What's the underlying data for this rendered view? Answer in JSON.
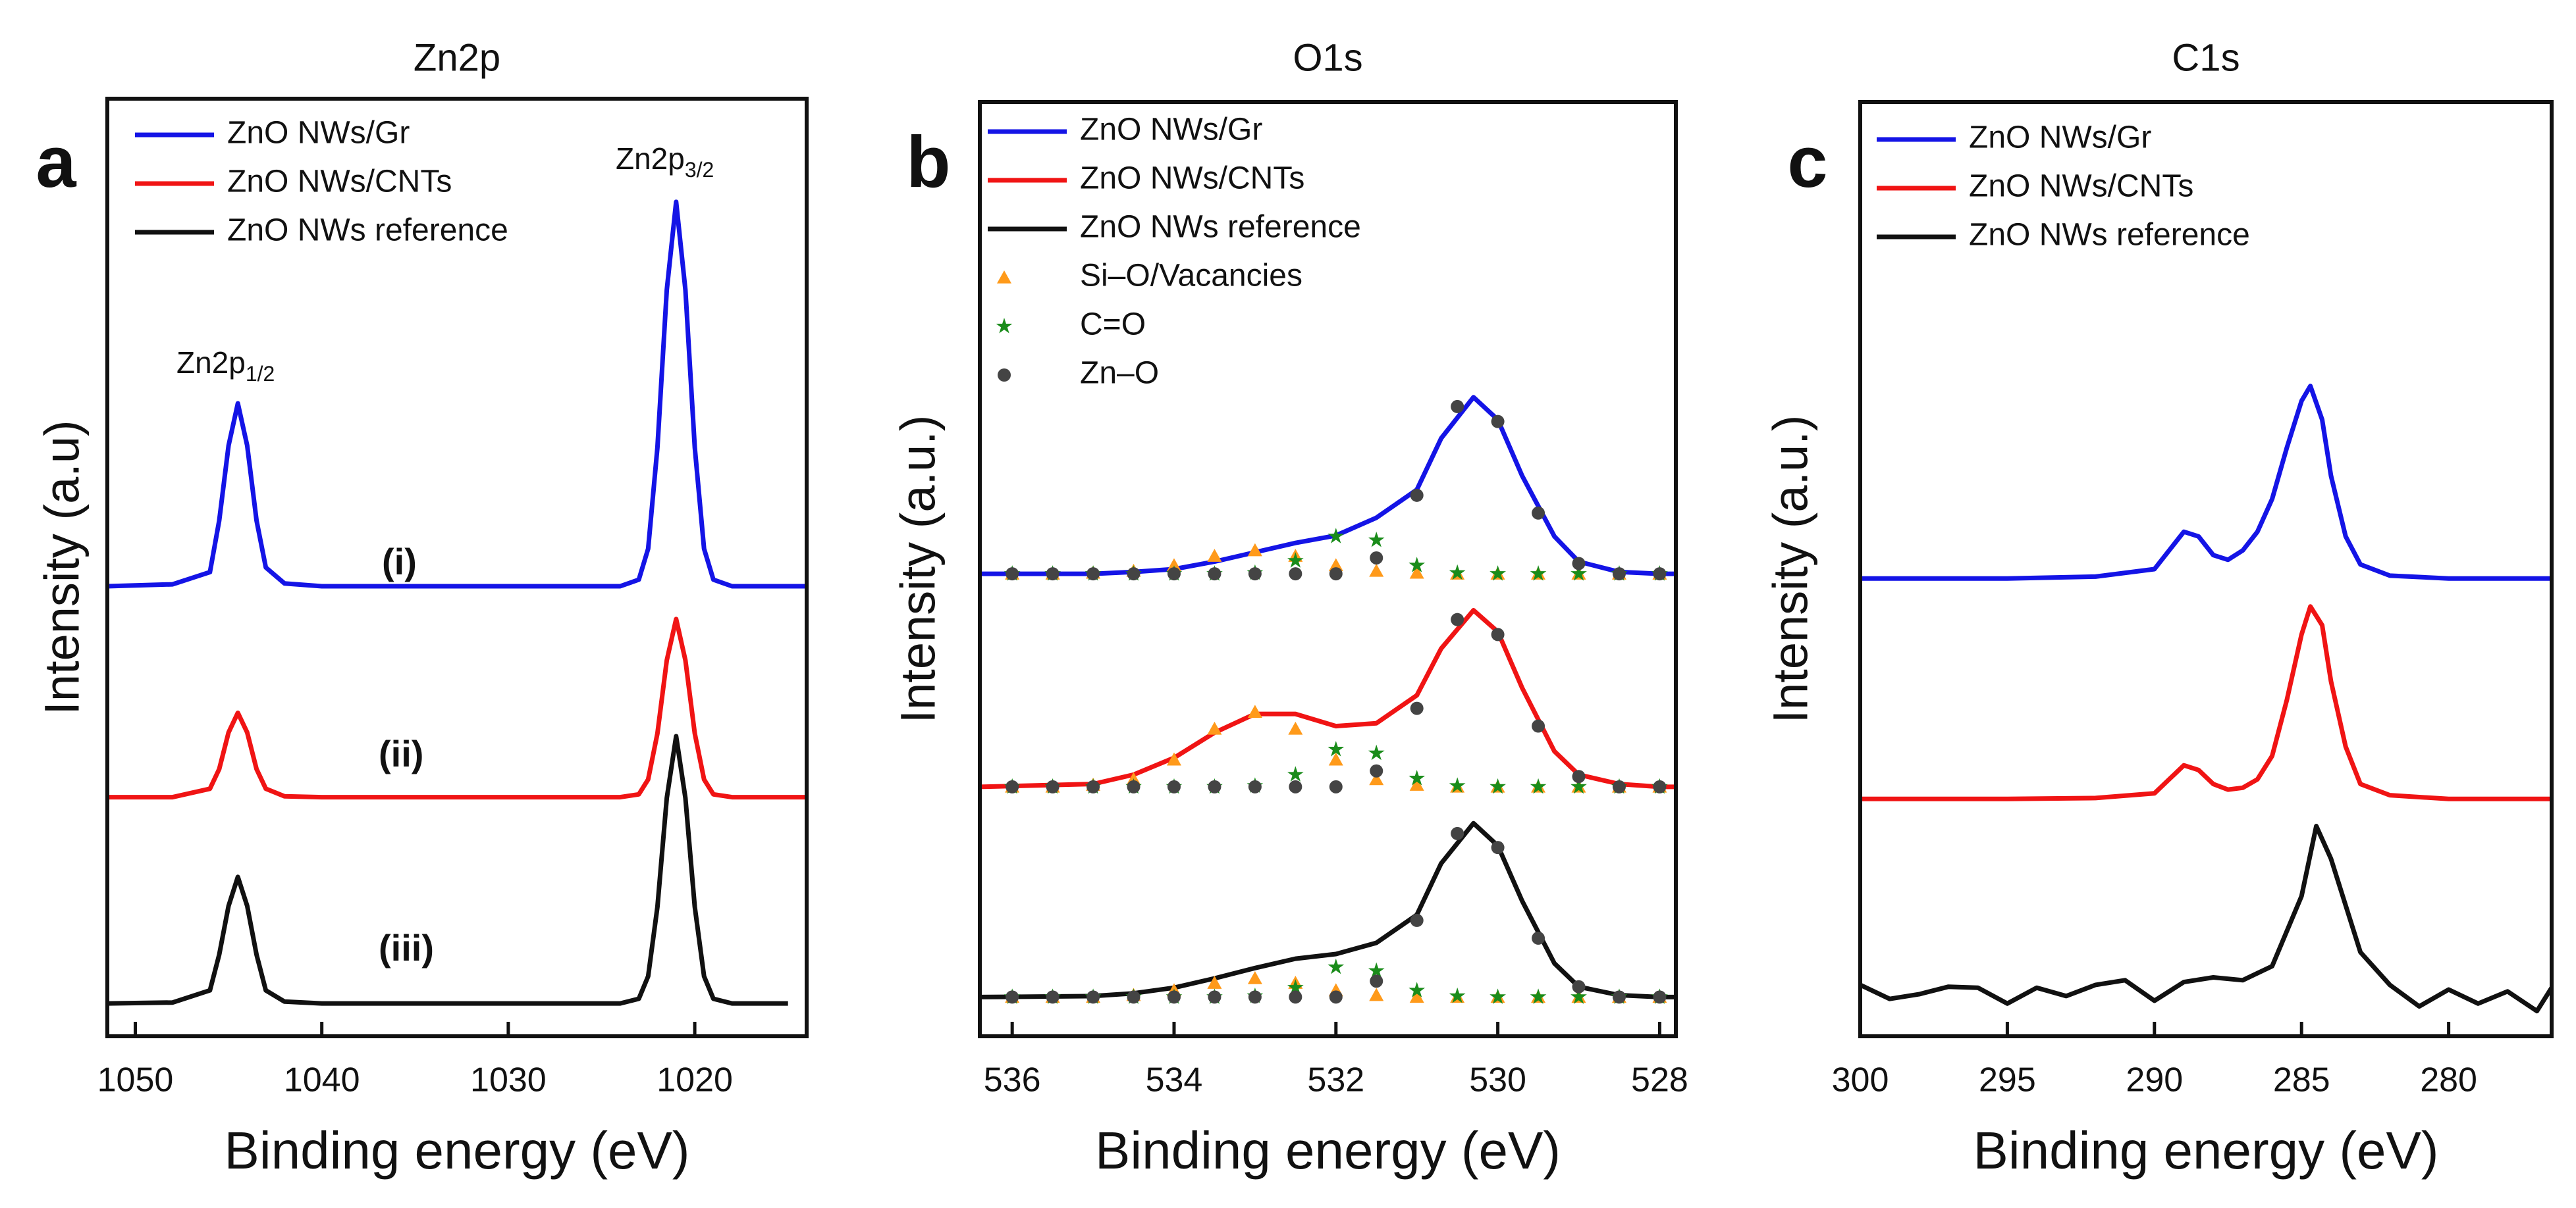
{
  "chart_data": [
    {
      "type": "line",
      "panel_label": "a",
      "title": "Zn2p",
      "xlabel": "Binding energy (eV)",
      "ylabel": "Intensity (a.u)",
      "xlim": [
        1051.5,
        1014
      ],
      "ylim": [
        0,
        100
      ],
      "xticks": [
        1050,
        1040,
        1030,
        1020
      ],
      "legend": "upper left",
      "annotations": [
        {
          "text": "Zn2p",
          "sub": "1/2"
        },
        {
          "text": "Zn2p",
          "sub": "3/2"
        },
        {
          "text": "(i)"
        },
        {
          "text": "(ii)"
        },
        {
          "text": "(iii)"
        }
      ],
      "series": [
        {
          "name": "ZnO NWs/Gr",
          "color": "#1414e6",
          "x": [
            1051.5,
            1048,
            1046,
            1045.5,
            1045,
            1044.5,
            1044,
            1043.5,
            1043,
            1042,
            1040,
            1035,
            1030,
            1026,
            1024,
            1023,
            1022.5,
            1022,
            1021.5,
            1021,
            1020.5,
            1020,
            1019.5,
            1019,
            1018,
            1016,
            1014
          ],
          "values": [
            48,
            48.2,
            49.5,
            55,
            63,
            67.5,
            63,
            55,
            50,
            48.3,
            48,
            48,
            48,
            48,
            48,
            48.7,
            52,
            62.8,
            79.6,
            89,
            79.6,
            62.8,
            52,
            48.7,
            48,
            48,
            48
          ]
        },
        {
          "name": "ZnO NWs/CNTs",
          "color": "#f01414",
          "x": [
            1051.5,
            1048,
            1046,
            1045.5,
            1045,
            1044.5,
            1044,
            1043.5,
            1043,
            1042,
            1040,
            1035,
            1030,
            1026,
            1024,
            1023,
            1022.5,
            1022,
            1021.5,
            1021,
            1020.5,
            1020,
            1019.5,
            1019,
            1018,
            1016,
            1014
          ],
          "values": [
            25.5,
            25.5,
            26.4,
            28.5,
            32.4,
            34.5,
            32.4,
            28.5,
            26.4,
            25.6,
            25.5,
            25.5,
            25.5,
            25.5,
            25.5,
            25.8,
            27.4,
            32.3,
            40.1,
            44.5,
            40.1,
            32.3,
            27.4,
            25.8,
            25.5,
            25.5,
            25.5
          ]
        },
        {
          "name": "ZnO NWs reference",
          "color": "#111111",
          "x": [
            1051.5,
            1048,
            1046,
            1045.5,
            1045,
            1044.5,
            1044,
            1043.5,
            1043,
            1042,
            1040,
            1035,
            1030,
            1026,
            1024,
            1023,
            1022.5,
            1022,
            1021.5,
            1021,
            1020.5,
            1020,
            1019.5,
            1019,
            1018,
            1016,
            1015
          ],
          "values": [
            3.5,
            3.6,
            4.9,
            8.7,
            13.9,
            17,
            13.9,
            8.7,
            4.9,
            3.7,
            3.5,
            3.5,
            3.5,
            3.5,
            3.5,
            4,
            6.4,
            13.8,
            25.4,
            32,
            25.4,
            13.8,
            6.4,
            4,
            3.5,
            3.5,
            3.5
          ]
        }
      ]
    },
    {
      "type": "line",
      "panel_label": "b",
      "title": "O1s",
      "xlabel": "Binding energy (eV)",
      "ylabel": "Intensity (a.u.)",
      "xlim": [
        536.4,
        527.8
      ],
      "ylim": [
        0,
        100
      ],
      "xticks": [
        536,
        534,
        532,
        530,
        528
      ],
      "legend": "upper left",
      "series": [
        {
          "name": "ZnO NWs/Gr",
          "color": "#1414e6",
          "x": [
            536.4,
            535,
            534.5,
            534,
            533.5,
            533,
            532.5,
            532,
            531.5,
            531,
            530.7,
            530.3,
            530,
            529.7,
            529.3,
            529,
            528.5,
            528,
            527.8
          ],
          "values": [
            49.5,
            49.5,
            49.7,
            50,
            50.8,
            51.8,
            52.8,
            53.6,
            55.5,
            58.5,
            64,
            68.4,
            66,
            60,
            53.5,
            50.8,
            49.7,
            49.5,
            49.5
          ]
        },
        {
          "name": "ZnO NWs/CNTs",
          "color": "#f01414",
          "x": [
            536.4,
            535,
            534.5,
            534,
            533.5,
            533,
            532.5,
            532,
            531.5,
            531,
            530.7,
            530.3,
            530,
            529.7,
            529.3,
            529,
            528.5,
            528,
            527.8
          ],
          "values": [
            26.7,
            27,
            28,
            29.8,
            32.5,
            34.5,
            34.5,
            33.2,
            33.5,
            36.5,
            41.5,
            45.6,
            43.3,
            37.3,
            30.5,
            28,
            27,
            26.7,
            26.7
          ]
        },
        {
          "name": "ZnO NWs reference",
          "color": "#111111",
          "x": [
            536.4,
            535,
            534.5,
            534,
            533.5,
            533,
            532.5,
            532,
            531.5,
            531,
            530.7,
            530.3,
            530,
            529.7,
            529.3,
            529,
            528.5,
            528,
            527.8
          ],
          "values": [
            4.2,
            4.3,
            4.6,
            5.2,
            6.2,
            7.3,
            8.3,
            8.8,
            10,
            13,
            18.5,
            22.8,
            20.4,
            14.5,
            7.8,
            5.3,
            4.4,
            4.2,
            4.2
          ]
        },
        {
          "name": "Si–O/Vacancies",
          "type": "scatter",
          "marker": "triangle",
          "color": "#ff9a1a",
          "x": [
            536,
            535.5,
            535,
            534.5,
            534,
            533.5,
            533,
            532.5,
            532,
            531.5,
            531,
            530.5,
            530,
            529.5,
            529,
            528.5,
            528,
            536,
            535.5,
            535,
            534.5,
            534,
            533.5,
            533,
            532.5,
            532,
            531.5,
            531,
            530.5,
            530,
            529.5,
            529,
            528.5,
            528,
            536,
            535.5,
            535,
            534.5,
            534,
            533.5,
            533,
            532.5,
            532,
            531.5,
            531,
            530.5,
            530,
            529.5,
            529,
            528.5,
            528
          ],
          "values": [
            49.5,
            49.5,
            49.6,
            49.8,
            50.4,
            51.4,
            52,
            51.4,
            50.4,
            49.8,
            49.6,
            49.5,
            49.5,
            49.5,
            49.5,
            49.5,
            49.5,
            26.7,
            26.7,
            26.9,
            27.5,
            29.6,
            32.9,
            34.7,
            32.9,
            29.6,
            27.5,
            26.9,
            26.7,
            26.7,
            26.7,
            26.7,
            26.7,
            26.7,
            4.2,
            4.2,
            4.2,
            4.4,
            4.9,
            5.7,
            6.2,
            5.7,
            4.9,
            4.4,
            4.2,
            4.2,
            4.2,
            4.2,
            4.2,
            4.2,
            4.2
          ]
        },
        {
          "name": "C=O",
          "type": "scatter",
          "marker": "star",
          "color": "#1a8c1a",
          "x": [
            536,
            535.5,
            535,
            534.5,
            534,
            533.5,
            533,
            532.5,
            532,
            531.5,
            531,
            530.5,
            530,
            529.5,
            529,
            528.5,
            528,
            536,
            535.5,
            535,
            534.5,
            534,
            533.5,
            533,
            532.5,
            532,
            531.5,
            531,
            530.5,
            530,
            529.5,
            529,
            528.5,
            528,
            536,
            535.5,
            535,
            534.5,
            534,
            533.5,
            533,
            532.5,
            532,
            531.5,
            531,
            530.5,
            530,
            529.5,
            529,
            528.5,
            528
          ],
          "values": [
            49.5,
            49.5,
            49.5,
            49.5,
            49.5,
            49.5,
            49.6,
            50.9,
            53.5,
            53.1,
            50.4,
            49.6,
            49.5,
            49.5,
            49.5,
            49.5,
            49.5,
            26.7,
            26.7,
            26.7,
            26.7,
            26.7,
            26.7,
            26.8,
            28,
            30.7,
            30.3,
            27.6,
            26.8,
            26.7,
            26.7,
            26.7,
            26.7,
            26.7,
            4.2,
            4.2,
            4.2,
            4.2,
            4.2,
            4.2,
            4.3,
            5.2,
            7.4,
            7,
            4.9,
            4.3,
            4.2,
            4.2,
            4.2,
            4.2,
            4.2
          ]
        },
        {
          "name": "Zn–O",
          "type": "scatter",
          "marker": "circle",
          "color": "#444444",
          "x": [
            536,
            535.5,
            535,
            534.5,
            534,
            533.5,
            533,
            532.5,
            532,
            531.5,
            531,
            530.5,
            530,
            529.5,
            529,
            528.5,
            528,
            536,
            535.5,
            535,
            534.5,
            534,
            533.5,
            533,
            532.5,
            532,
            531.5,
            531,
            530.5,
            530,
            529.5,
            529,
            528.5,
            528,
            536,
            535.5,
            535,
            534.5,
            534,
            533.5,
            533,
            532.5,
            532,
            531.5,
            531,
            530.5,
            530,
            529.5,
            529,
            528.5,
            528
          ],
          "values": [
            49.5,
            49.5,
            49.5,
            49.5,
            49.5,
            49.5,
            49.5,
            49.5,
            49.5,
            51.2,
            57.9,
            67.4,
            65.8,
            56,
            50.6,
            49.5,
            49.5,
            26.7,
            26.7,
            26.7,
            26.7,
            26.7,
            26.7,
            26.7,
            26.7,
            26.7,
            28.4,
            35.1,
            44.6,
            43,
            33.2,
            27.8,
            26.7,
            26.7,
            4.2,
            4.2,
            4.2,
            4.2,
            4.2,
            4.2,
            4.2,
            4.2,
            4.2,
            5.9,
            12.4,
            21.7,
            20.2,
            10.5,
            5.3,
            4.2,
            4.2
          ]
        }
      ]
    },
    {
      "type": "line",
      "panel_label": "c",
      "title": "C1s",
      "xlabel": "Binding energy (eV)",
      "ylabel": "Intensity (a.u.)",
      "xlim": [
        300,
        276.5
      ],
      "ylim": [
        0,
        100
      ],
      "xticks": [
        300,
        295,
        290,
        285,
        280
      ],
      "legend": "upper left",
      "series": [
        {
          "name": "ZnO NWs/Gr",
          "color": "#1414e6",
          "x": [
            300,
            295,
            292,
            290,
            289.5,
            289,
            288.5,
            288,
            287.5,
            287,
            286.5,
            286,
            285.5,
            285,
            284.7,
            284.3,
            284,
            283.5,
            283,
            282,
            280,
            276.5
          ],
          "values": [
            49,
            49,
            49.2,
            50,
            52,
            54,
            53.5,
            51.5,
            51,
            52,
            54,
            57.5,
            63,
            68,
            69.6,
            66,
            60,
            53.5,
            50.5,
            49.3,
            49,
            49
          ]
        },
        {
          "name": "ZnO NWs/CNTs",
          "color": "#f01414",
          "x": [
            300,
            295,
            292,
            290,
            289.5,
            289,
            288.5,
            288,
            287.5,
            287,
            286.5,
            286,
            285.5,
            285,
            284.7,
            284.3,
            284,
            283.5,
            283,
            282,
            280,
            276.5
          ],
          "values": [
            25.4,
            25.4,
            25.5,
            26,
            27.5,
            29,
            28.5,
            27,
            26.4,
            26.6,
            27.5,
            30,
            36,
            43,
            46,
            44,
            38,
            31,
            27,
            25.8,
            25.4,
            25.4
          ]
        },
        {
          "name": "ZnO NWs reference",
          "color": "#111111",
          "x": [
            300,
            299,
            298,
            297,
            296,
            295,
            294,
            293,
            292,
            291,
            290,
            289,
            288,
            287,
            286,
            285,
            284.5,
            284,
            283,
            282,
            281,
            280,
            279,
            278,
            277,
            276.5
          ],
          "values": [
            5.5,
            4,
            4.5,
            5.3,
            5.2,
            3.5,
            5.2,
            4.3,
            5.5,
            6,
            3.8,
            5.8,
            6.3,
            6,
            7.5,
            15,
            22.5,
            19,
            9,
            5.5,
            3.2,
            5,
            3.5,
            4.8,
            2.7,
            5.2
          ]
        }
      ]
    }
  ]
}
